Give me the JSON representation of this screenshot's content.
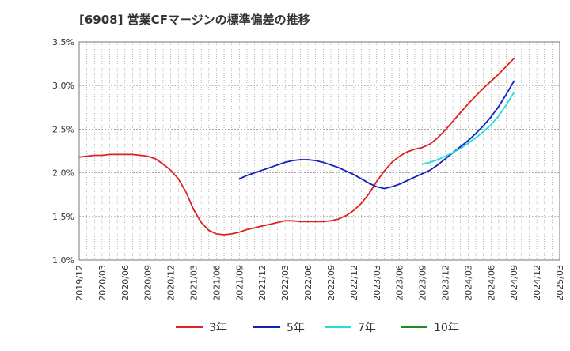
{
  "chart_data": {
    "type": "line",
    "title": "[6908]  営業CFマージンの標準偏差の推移",
    "xlabel": "",
    "ylabel": "",
    "x_ticks": [
      "2019/12",
      "2020/03",
      "2020/06",
      "2020/09",
      "2020/12",
      "2021/03",
      "2021/06",
      "2021/09",
      "2021/12",
      "2022/03",
      "2022/06",
      "2022/09",
      "2022/12",
      "2023/03",
      "2023/06",
      "2023/09",
      "2023/12",
      "2024/03",
      "2024/06",
      "2024/09",
      "2024/12",
      "2025/03"
    ],
    "y_ticks": [
      "1.0%",
      "1.5%",
      "2.0%",
      "2.5%",
      "3.0%",
      "3.5%"
    ],
    "ylim": [
      1.0,
      3.5
    ],
    "grid": true,
    "legend_position": "bottom",
    "series": [
      {
        "name": "3年",
        "color": "#dd2222",
        "x": [
          "2019/12",
          "2020/01",
          "2020/02",
          "2020/03",
          "2020/04",
          "2020/05",
          "2020/06",
          "2020/07",
          "2020/08",
          "2020/09",
          "2020/10",
          "2020/11",
          "2020/12",
          "2021/01",
          "2021/02",
          "2021/03",
          "2021/04",
          "2021/05",
          "2021/06",
          "2021/07",
          "2021/08",
          "2021/09",
          "2021/10",
          "2021/11",
          "2021/12",
          "2022/01",
          "2022/02",
          "2022/03",
          "2022/04",
          "2022/05",
          "2022/06",
          "2022/07",
          "2022/08",
          "2022/09",
          "2022/10",
          "2022/11",
          "2022/12",
          "2023/01",
          "2023/02",
          "2023/03",
          "2023/04",
          "2023/05",
          "2023/06",
          "2023/07",
          "2023/08",
          "2023/09",
          "2023/10",
          "2023/11",
          "2023/12",
          "2024/01",
          "2024/02",
          "2024/03",
          "2024/04",
          "2024/05",
          "2024/06",
          "2024/07",
          "2024/08",
          "2024/09"
        ],
        "values": [
          2.18,
          2.19,
          2.2,
          2.2,
          2.21,
          2.21,
          2.21,
          2.21,
          2.2,
          2.19,
          2.16,
          2.1,
          2.03,
          1.93,
          1.78,
          1.58,
          1.43,
          1.34,
          1.3,
          1.29,
          1.3,
          1.32,
          1.35,
          1.37,
          1.39,
          1.41,
          1.43,
          1.45,
          1.45,
          1.44,
          1.44,
          1.44,
          1.44,
          1.45,
          1.47,
          1.51,
          1.57,
          1.65,
          1.76,
          1.9,
          2.02,
          2.12,
          2.19,
          2.24,
          2.27,
          2.29,
          2.33,
          2.4,
          2.49,
          2.59,
          2.69,
          2.79,
          2.88,
          2.97,
          3.05,
          3.13,
          3.22,
          3.31
        ]
      },
      {
        "name": "5年",
        "color": "#1122bb",
        "x": [
          "2021/09",
          "2021/10",
          "2021/11",
          "2021/12",
          "2022/01",
          "2022/02",
          "2022/03",
          "2022/04",
          "2022/05",
          "2022/06",
          "2022/07",
          "2022/08",
          "2022/09",
          "2022/10",
          "2022/11",
          "2022/12",
          "2023/01",
          "2023/02",
          "2023/03",
          "2023/04",
          "2023/05",
          "2023/06",
          "2023/07",
          "2023/08",
          "2023/09",
          "2023/10",
          "2023/11",
          "2023/12",
          "2024/01",
          "2024/02",
          "2024/03",
          "2024/04",
          "2024/05",
          "2024/06",
          "2024/07",
          "2024/08",
          "2024/09"
        ],
        "values": [
          1.93,
          1.97,
          2.0,
          2.03,
          2.06,
          2.09,
          2.12,
          2.14,
          2.15,
          2.15,
          2.14,
          2.12,
          2.09,
          2.06,
          2.02,
          1.98,
          1.93,
          1.88,
          1.84,
          1.82,
          1.84,
          1.87,
          1.91,
          1.95,
          1.99,
          2.03,
          2.09,
          2.16,
          2.23,
          2.3,
          2.37,
          2.45,
          2.54,
          2.64,
          2.76,
          2.9,
          3.05
        ]
      },
      {
        "name": "7年",
        "color": "#22dddd",
        "x": [
          "2023/09",
          "2023/10",
          "2023/11",
          "2023/12",
          "2024/01",
          "2024/02",
          "2024/03",
          "2024/04",
          "2024/05",
          "2024/06",
          "2024/07",
          "2024/08",
          "2024/09"
        ],
        "values": [
          2.1,
          2.12,
          2.15,
          2.19,
          2.23,
          2.28,
          2.34,
          2.4,
          2.47,
          2.55,
          2.65,
          2.78,
          2.92
        ]
      },
      {
        "name": "10年",
        "color": "#228822",
        "x": [],
        "values": []
      }
    ]
  }
}
